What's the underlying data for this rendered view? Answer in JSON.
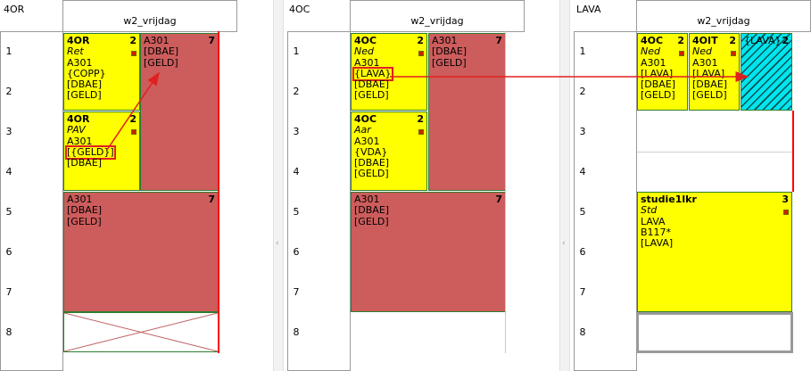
{
  "colors": {
    "yellow": "#ffff00",
    "red_block": "#cd5c5c",
    "cyan_block": "#00e5ee",
    "arrow": "#e02020",
    "border_green": "#2e7d2e"
  },
  "row_numbers": [
    "1",
    "2",
    "3",
    "4",
    "5",
    "6",
    "7",
    "8"
  ],
  "panel1": {
    "label": "4OR",
    "day": "w2_vrijdag",
    "cards": [
      {
        "title": "4OR",
        "count": "2",
        "subject": "Ret",
        "lines": [
          "A301",
          "{COPP}",
          "[DBAE]",
          "[GELD]"
        ]
      },
      {
        "title": "",
        "count": "7",
        "subject": "",
        "lines": [
          "A301",
          "[DBAE]",
          "[GELD]"
        ]
      },
      {
        "title": "4OR",
        "count": "2",
        "subject": "PAV",
        "lines": [
          "A301",
          "[{GELD}]",
          "[DBAE]"
        ]
      },
      {
        "title": "",
        "count": "7",
        "subject": "",
        "lines": [
          "A301",
          "[DBAE]",
          "[GELD]"
        ]
      }
    ]
  },
  "panel2": {
    "label": "4OC",
    "day": "w2_vrijdag",
    "cards": [
      {
        "title": "4OC",
        "count": "2",
        "subject": "Ned",
        "lines": [
          "A301",
          "{LAVA}",
          "[DBAE]",
          "[GELD]"
        ]
      },
      {
        "title": "",
        "count": "7",
        "subject": "",
        "lines": [
          "A301",
          "[DBAE]",
          "[GELD]"
        ]
      },
      {
        "title": "4OC",
        "count": "2",
        "subject": "Aar",
        "lines": [
          "A301",
          "{VDA}",
          "[DBAE]",
          "[GELD]"
        ]
      },
      {
        "title": "",
        "count": "7",
        "subject": "",
        "lines": [
          "A301",
          "[DBAE]",
          "[GELD]"
        ]
      }
    ]
  },
  "panel3": {
    "label": "LAVA",
    "day": "w2_vrijdag",
    "cards": [
      {
        "title": "4OC",
        "count": "2",
        "subject": "Ned",
        "lines": [
          "A301",
          "[LAVA]",
          "[DBAE]",
          "[GELD]"
        ]
      },
      {
        "title": "4OIT",
        "count": "2",
        "subject": "Ned",
        "lines": [
          "A301",
          "[LAVA]",
          "[DBAE]",
          "[GELD]"
        ]
      },
      {
        "title": "{LAVA}",
        "count": "2",
        "subject": "",
        "lines": []
      },
      {
        "title": "studie1lkr",
        "count": "3",
        "subject": "Std",
        "lines": [
          "LAVA",
          "B117*",
          "[LAVA]"
        ]
      }
    ]
  },
  "splitter_glyph": "‹"
}
